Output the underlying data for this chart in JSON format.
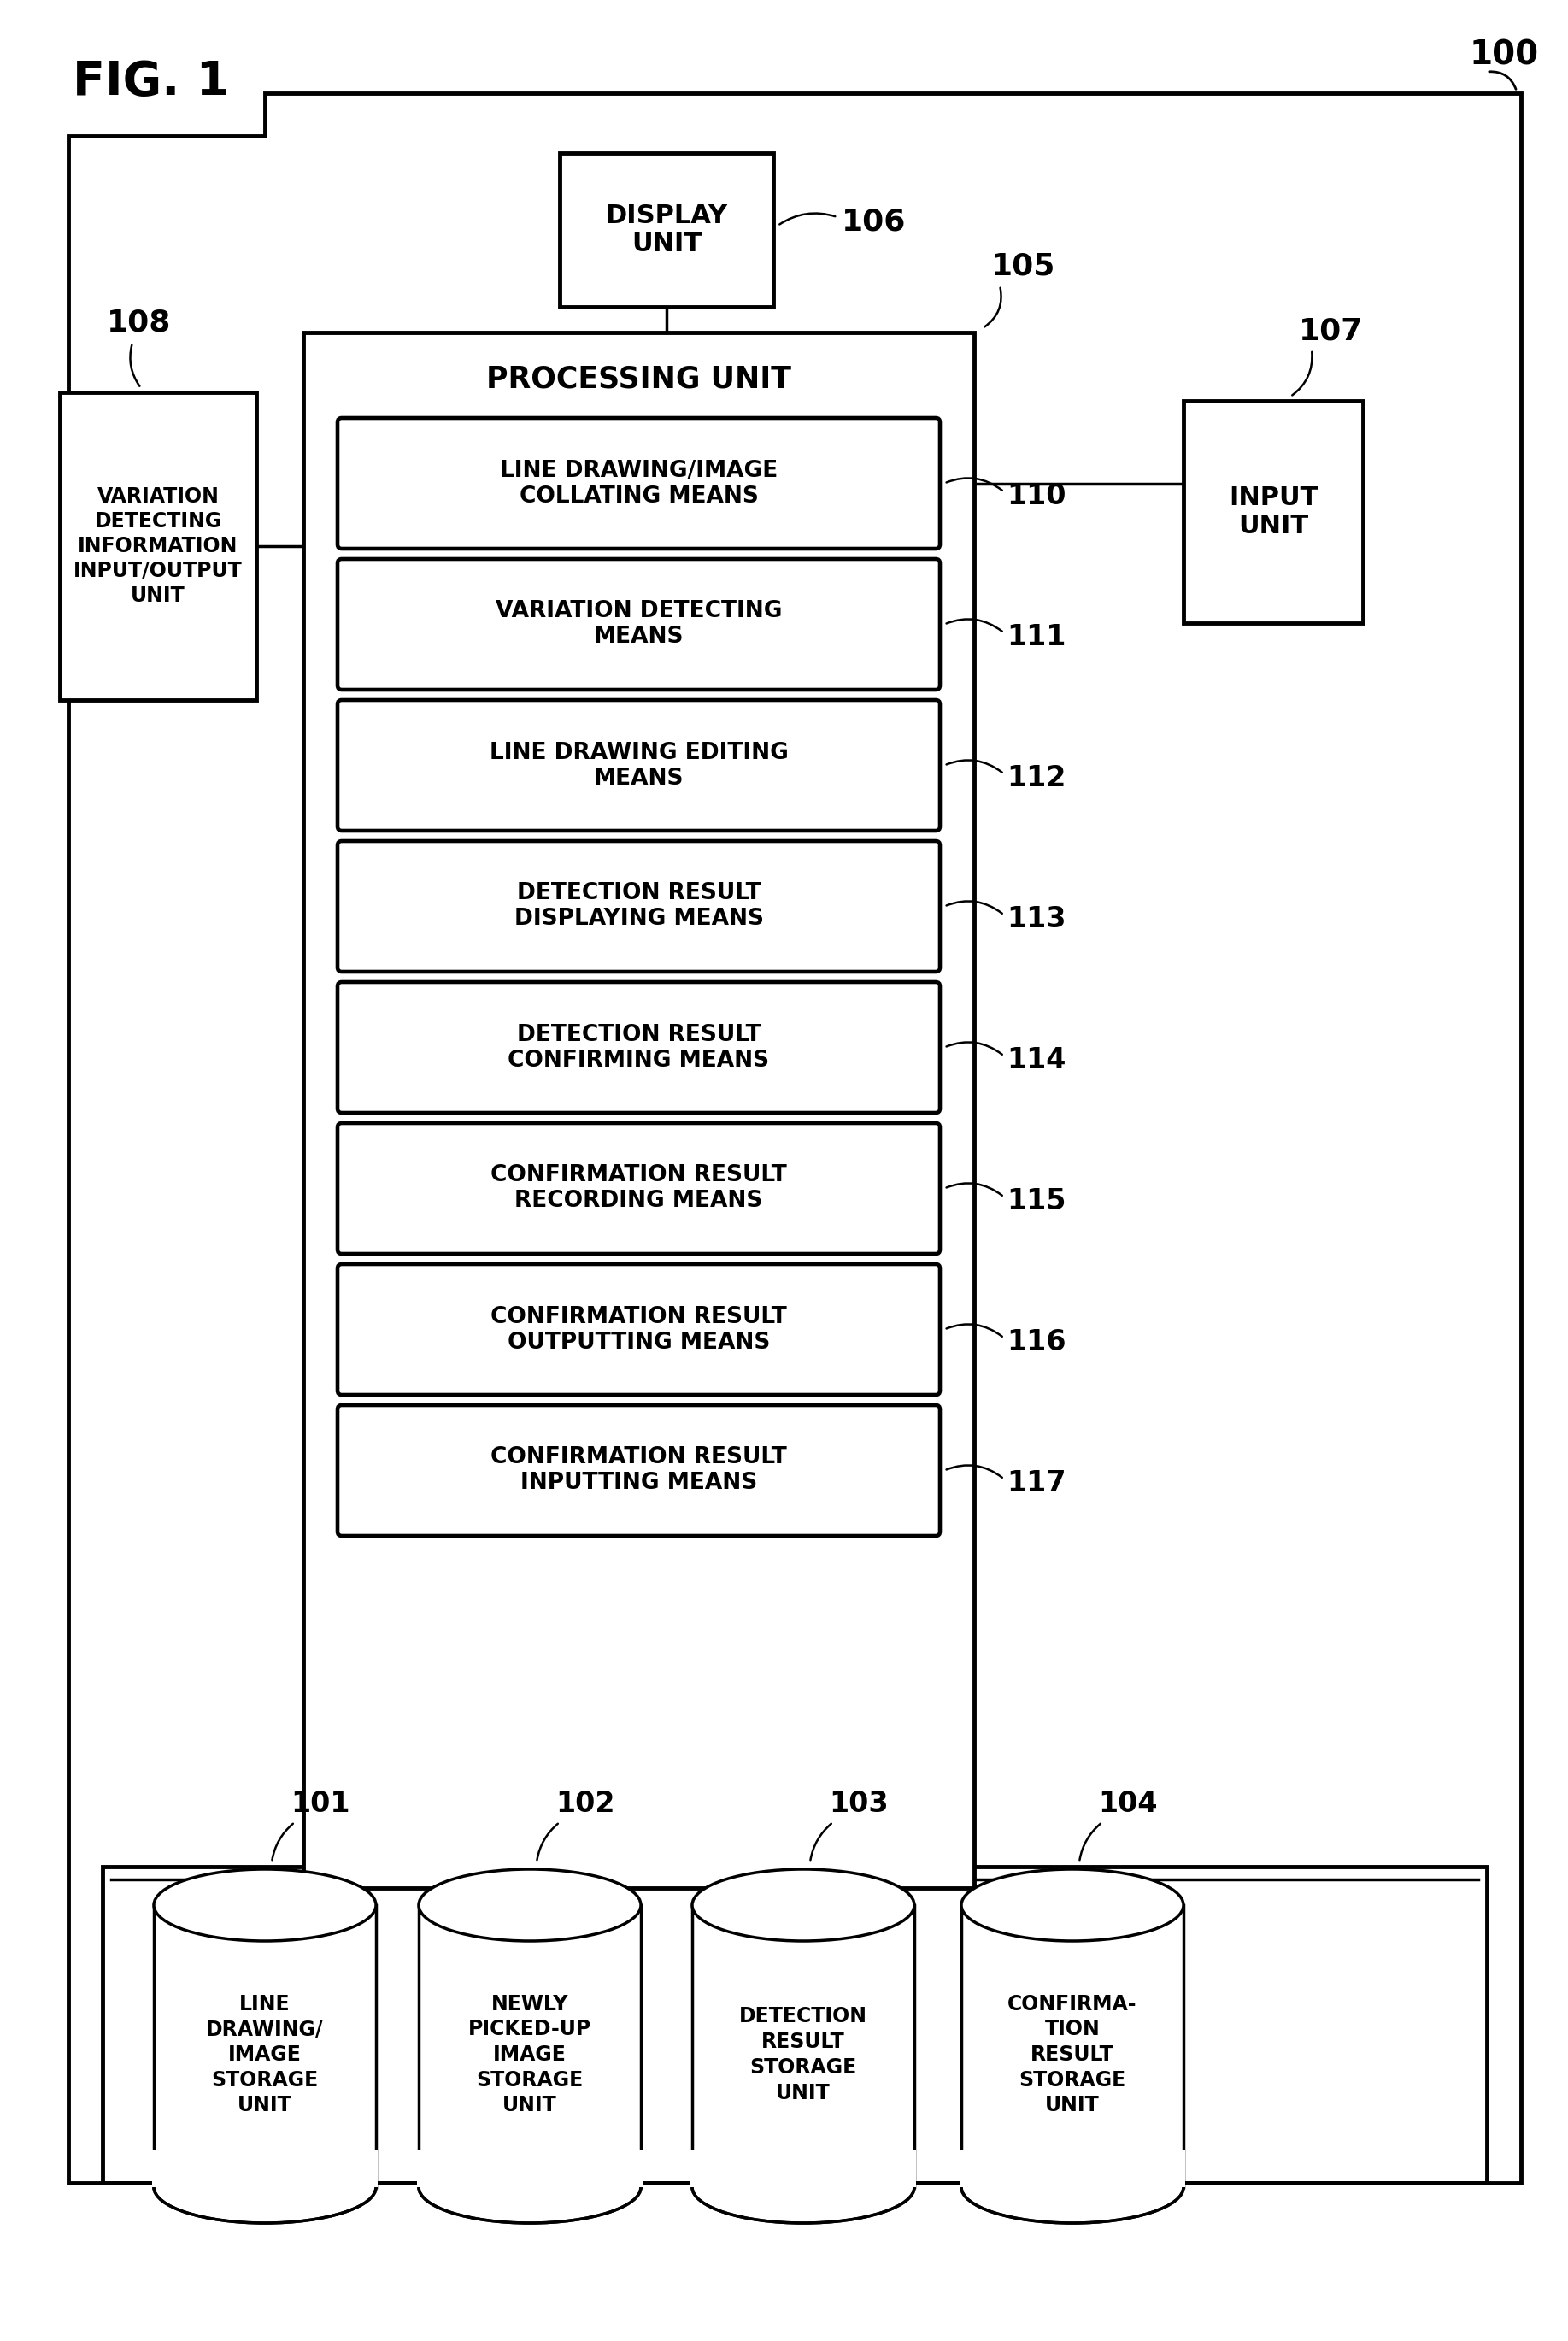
{
  "fig_label": "FIG. 1",
  "background_color": "#ffffff",
  "display_unit": {
    "label": "DISPLAY\nUNIT",
    "ref": "106"
  },
  "processing_unit": {
    "label": "PROCESSING UNIT",
    "ref": "105"
  },
  "input_unit": {
    "label": "INPUT\nUNIT",
    "ref": "107"
  },
  "variation_unit": {
    "label": "VARIATION\nDETECTING\nINFORMATION\nINPUT/OUTPUT\nUNIT",
    "ref": "108"
  },
  "means_boxes": [
    {
      "label": "LINE DRAWING/IMAGE\nCOLLATING MEANS",
      "ref": "110"
    },
    {
      "label": "VARIATION DETECTING\nMEANS",
      "ref": "111"
    },
    {
      "label": "LINE DRAWING EDITING\nMEANS",
      "ref": "112"
    },
    {
      "label": "DETECTION RESULT\nDISPLAYING MEANS",
      "ref": "113"
    },
    {
      "label": "DETECTION RESULT\nCONFIRMING MEANS",
      "ref": "114"
    },
    {
      "label": "CONFIRMATION RESULT\nRECORDING MEANS",
      "ref": "115"
    },
    {
      "label": "CONFIRMATION RESULT\nOUTPUTTING MEANS",
      "ref": "116"
    },
    {
      "label": "CONFIRMATION RESULT\nINPUTTING MEANS",
      "ref": "117"
    }
  ],
  "storage_units": [
    {
      "label": "LINE\nDRAWING/\nIMAGE\nSTORAGE\nUNIT",
      "ref": "101"
    },
    {
      "label": "NEWLY\nPICKED-UP\nIMAGE\nSTORAGE\nUNIT",
      "ref": "102"
    },
    {
      "label": "DETECTION\nRESULT\nSTORAGE\nUNIT",
      "ref": "103"
    },
    {
      "label": "CONFIRMA-\nTION\nRESULT\nSTORAGE\nUNIT",
      "ref": "104"
    }
  ]
}
